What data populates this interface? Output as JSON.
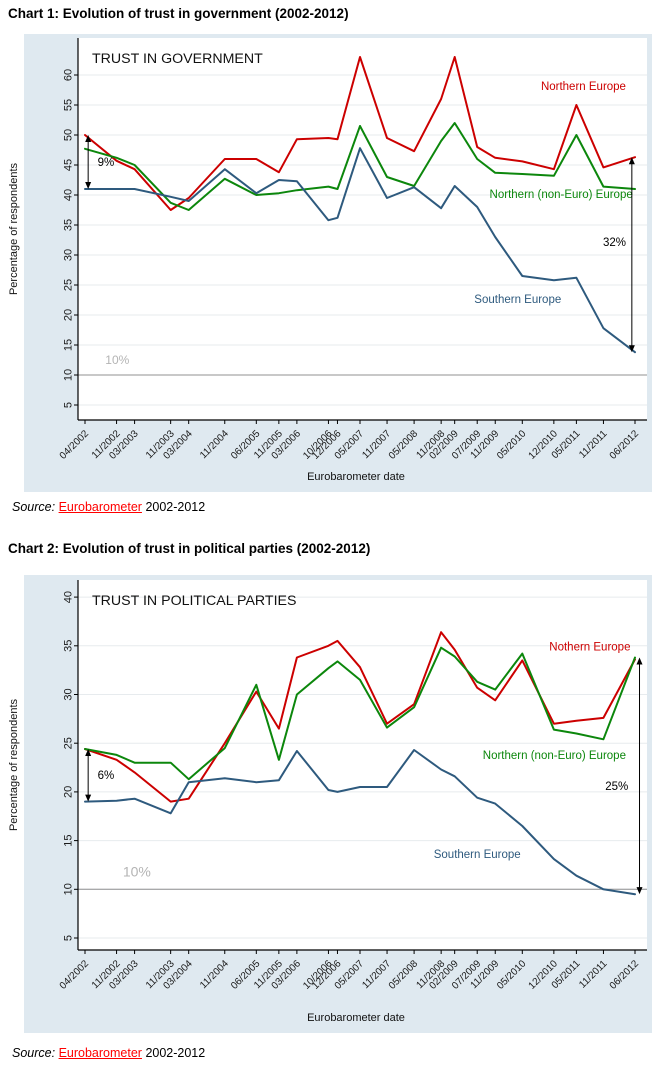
{
  "page": {
    "heading1": "Chart 1: Evolution of trust in government (2002-2012)",
    "heading2": "Chart 2: Evolution of trust in political parties (2002-2012)",
    "source_prefix": "Source:",
    "source_link": "Eurobarometer",
    "source_suffix": "2002-2012"
  },
  "colors": {
    "figure_bg": "#dfe9f0",
    "plot_bg": "#ffffff",
    "grid": "#e7ebee",
    "axis": "#000000",
    "refline": "#909090",
    "refline_label": "#b4b4b4",
    "northern": "#cc0000",
    "non_euro": "#0c870c",
    "southern": "#2e5a7e",
    "link": "#ff0000"
  },
  "chart_data": [
    {
      "type": "line",
      "title": "TRUST IN GOVERNMENT",
      "xlabel": "Eurobarometer date",
      "ylabel": "Percentage of respondents",
      "ylim": [
        5,
        60
      ],
      "yticks": [
        5,
        10,
        15,
        20,
        25,
        30,
        35,
        40,
        45,
        50,
        55,
        60
      ],
      "grid": true,
      "legend_position": "inline-labels",
      "categories": [
        "04/2002",
        "11/2002",
        "03/2003",
        "11/2003",
        "03/2004",
        "11/2004",
        "06/2005",
        "11/2005",
        "03/2006",
        "10/2006",
        "12/2006",
        "05/2007",
        "11/2007",
        "05/2008",
        "11/2008",
        "02/2009",
        "07/2009",
        "11/2009",
        "05/2010",
        "12/2010",
        "05/2011",
        "11/2011",
        "06/2012"
      ],
      "series": [
        {
          "name": "Northern Europe",
          "color": "#cc0000",
          "values": [
            50,
            45.7,
            44.3,
            37.5,
            39.5,
            46,
            46,
            43.8,
            49.3,
            49.5,
            49.3,
            63,
            49.5,
            47.3,
            56,
            63,
            48,
            46.2,
            45.6,
            44.3,
            55,
            44.6,
            46.3
          ]
        },
        {
          "name": "Northern (non-Euro) Europe",
          "color": "#0c870c",
          "values": [
            47.7,
            46.2,
            45,
            38.7,
            37.5,
            42.7,
            40,
            40.3,
            40.8,
            41.4,
            41,
            51.5,
            43,
            41.5,
            49,
            52,
            46,
            43.7,
            43.5,
            43.2,
            50,
            41.4,
            41
          ]
        },
        {
          "name": "Southern Europe",
          "color": "#2e5a7e",
          "values": [
            41,
            41,
            41,
            39.7,
            39,
            44.3,
            40.3,
            42.5,
            42.3,
            35.8,
            36.2,
            47.8,
            39.5,
            41.3,
            37.8,
            41.5,
            38,
            33,
            26.5,
            25.8,
            26.2,
            17.8,
            13.8
          ]
        }
      ],
      "series_labels": [
        {
          "text": "Northern Europe",
          "m": 120,
          "v": 57.5,
          "anchor": "end"
        },
        {
          "text": "Northern (non-Euro) Europe",
          "m": 121.5,
          "v": 39.5,
          "anchor": "end"
        },
        {
          "text": "Southern Europe",
          "m": 96,
          "v": 22,
          "anchor": "middle"
        }
      ],
      "refline": {
        "value": 10,
        "label": "10%",
        "label_m": 4.5,
        "label_v": 11.8,
        "label_size": 12
      },
      "annotations": [
        {
          "text": "9%",
          "arrow_m": 0.7,
          "from": 50,
          "to": 41,
          "text_m": 2.8,
          "text_v": 44.8,
          "anchor": "start"
        },
        {
          "text": "32%",
          "arrow_m": 121.3,
          "from": 46.3,
          "to": 13.8,
          "text_m": 120,
          "text_v": 31.5,
          "anchor": "end"
        }
      ]
    },
    {
      "type": "line",
      "title": "TRUST IN POLITICAL PARTIES",
      "xlabel": "Eurobarometer date",
      "ylabel": "Percentage of respondents",
      "ylim": [
        5,
        40
      ],
      "yticks": [
        5,
        10,
        15,
        20,
        25,
        30,
        35,
        40
      ],
      "grid": true,
      "legend_position": "inline-labels",
      "categories": [
        "04/2002",
        "11/2002",
        "03/2003",
        "11/2003",
        "03/2004",
        "11/2004",
        "06/2005",
        "11/2005",
        "03/2006",
        "10/2006",
        "12/2006",
        "05/2007",
        "11/2007",
        "05/2008",
        "11/2008",
        "02/2009",
        "07/2009",
        "11/2009",
        "05/2010",
        "12/2010",
        "05/2011",
        "11/2011",
        "06/2012"
      ],
      "series": [
        {
          "name": "Nothern Europe",
          "color": "#cc0000",
          "values": [
            24.4,
            23.3,
            22,
            19,
            19.3,
            25,
            30.3,
            26.5,
            33.8,
            35,
            35.5,
            32.8,
            27,
            29,
            36.4,
            34.6,
            30.7,
            29.4,
            33.5,
            27,
            27.3,
            27.6,
            33.6
          ]
        },
        {
          "name": "Northern (non-Euro) Europe",
          "color": "#0c870c",
          "values": [
            24.4,
            23.8,
            23,
            23,
            21.3,
            24.5,
            31,
            23.3,
            30,
            32.7,
            33.4,
            31.5,
            26.6,
            28.7,
            34.8,
            33.9,
            31.3,
            30.5,
            34.2,
            26.4,
            26,
            25.4,
            33.8
          ]
        },
        {
          "name": "Southern Europe",
          "color": "#2e5a7e",
          "values": [
            19,
            19.1,
            19.3,
            17.8,
            21,
            21.4,
            21,
            21.2,
            24.2,
            20.2,
            20,
            20.5,
            20.5,
            24.3,
            22.3,
            21.6,
            19.4,
            18.8,
            16.5,
            13.1,
            11.4,
            10,
            9.5
          ]
        }
      ],
      "series_labels": [
        {
          "text": "Nothern Europe",
          "m": 121,
          "v": 34.5,
          "anchor": "end"
        },
        {
          "text": "Northern (non-Euro) Europe",
          "m": 120,
          "v": 23.4,
          "anchor": "end"
        },
        {
          "text": "Southern Europe",
          "m": 87,
          "v": 13.2,
          "anchor": "middle"
        }
      ],
      "refline": {
        "value": 10,
        "label": "10%",
        "label_m": 8.4,
        "label_v": 11.3,
        "label_size": 14
      },
      "annotations": [
        {
          "text": "6%",
          "arrow_m": 0.7,
          "from": 24.4,
          "to": 19,
          "text_m": 2.8,
          "text_v": 21.3,
          "anchor": "start"
        },
        {
          "text": "25%",
          "arrow_m": 123,
          "from": 33.8,
          "to": 9.5,
          "text_m": 120.5,
          "text_v": 20.2,
          "anchor": "end"
        }
      ]
    }
  ]
}
